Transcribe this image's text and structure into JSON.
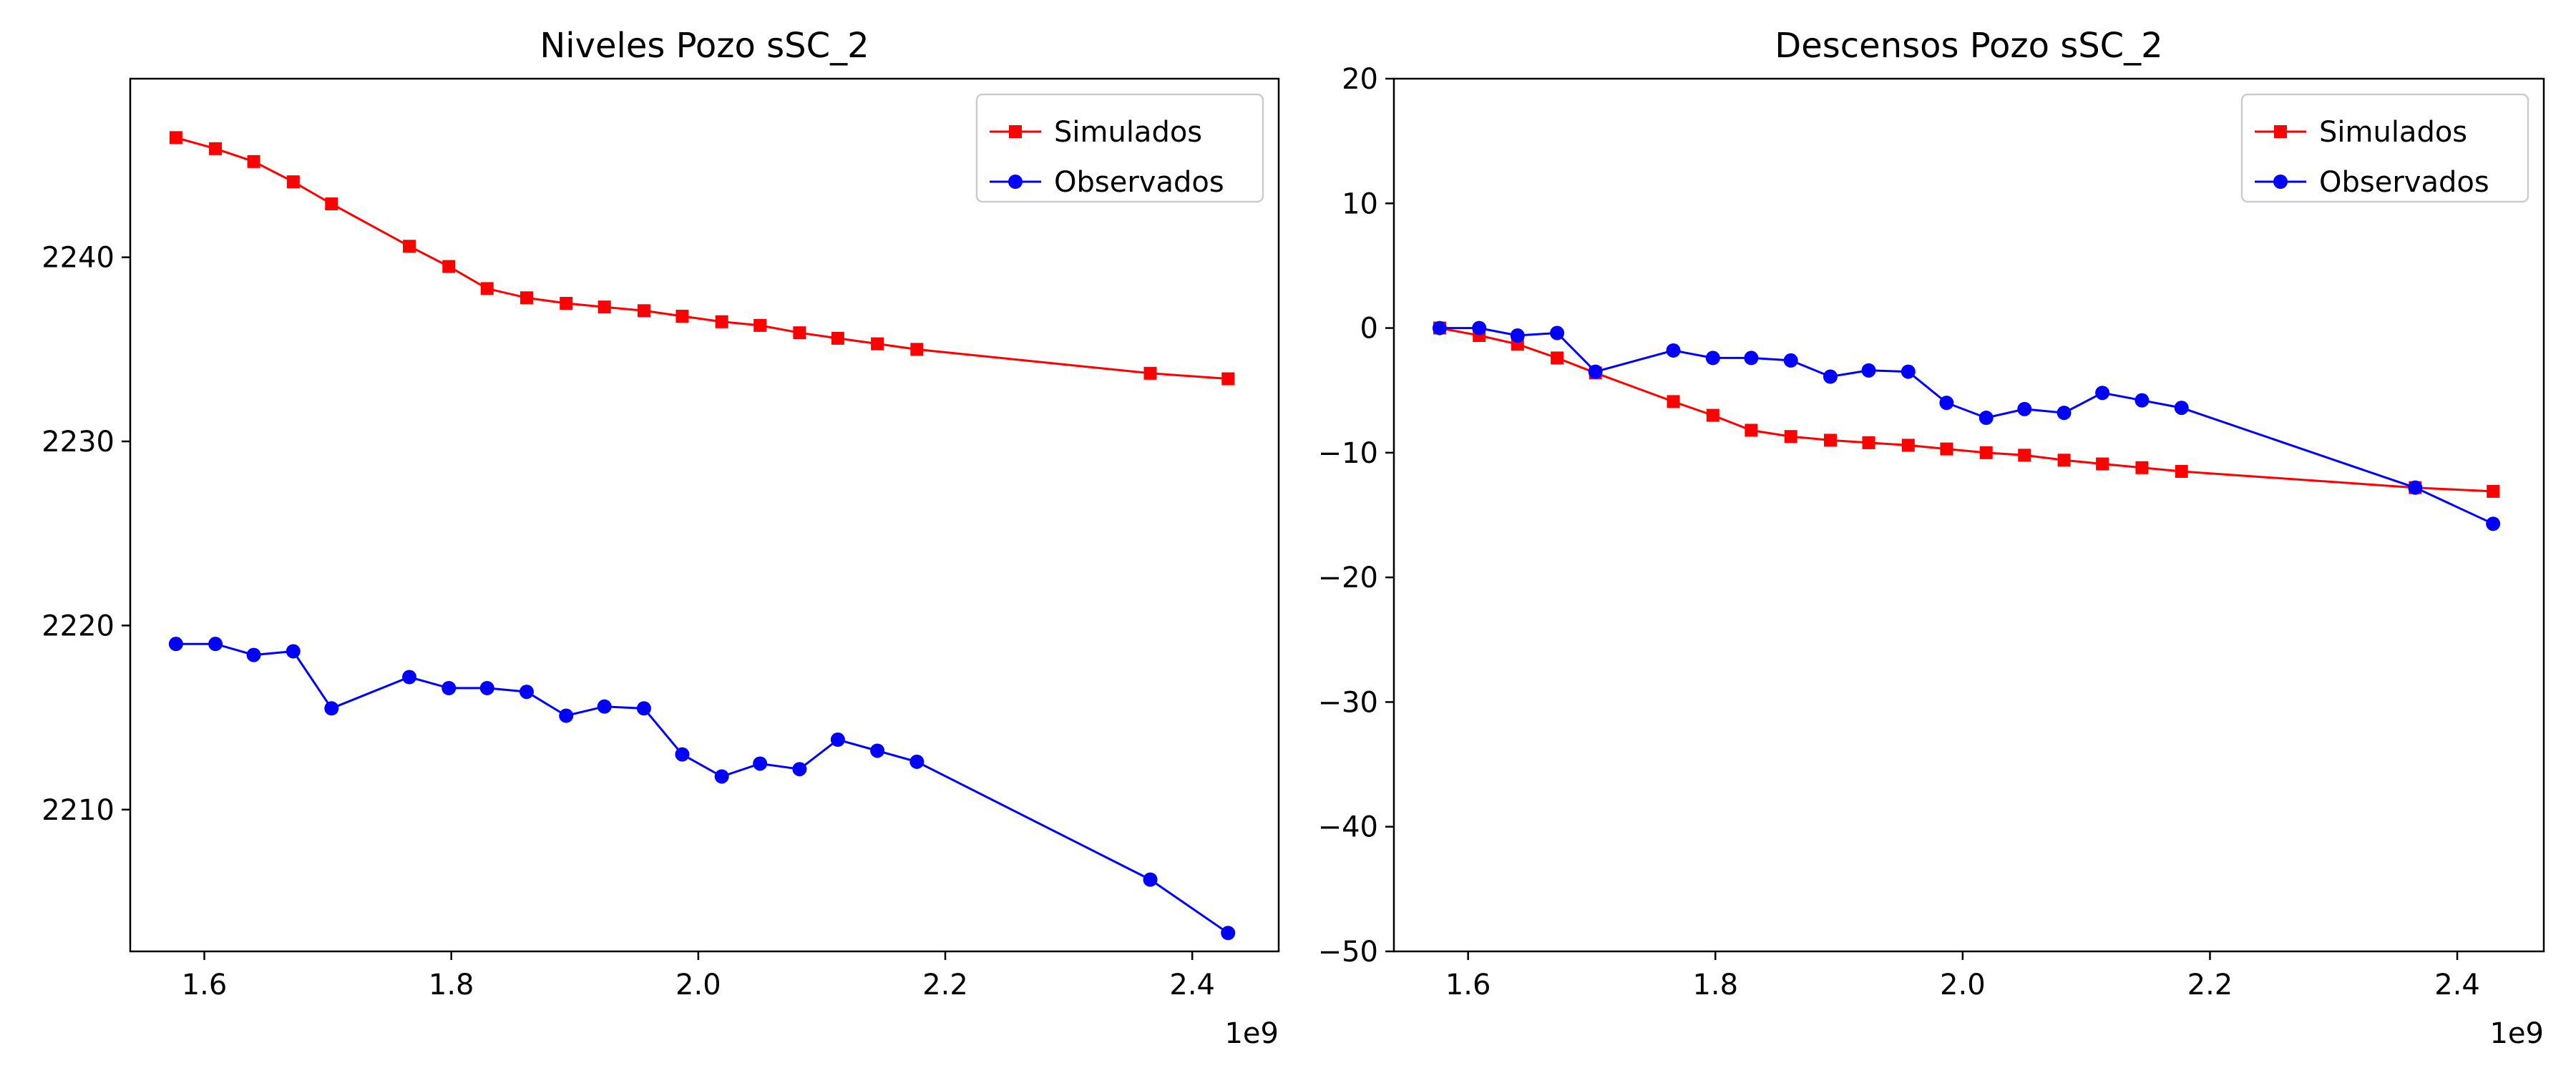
{
  "chart_data": [
    {
      "type": "line",
      "title": "Niveles Pozo sSC_2",
      "xlabel": "",
      "ylabel": "",
      "x_offset_label": "1e9",
      "xlim": [
        1.54,
        2.47
      ],
      "ylim": [
        2202.3,
        2249.7
      ],
      "xticks": [
        1.6,
        1.8,
        2.0,
        2.2,
        2.4
      ],
      "xtick_labels": [
        "1.6",
        "1.8",
        "2.0",
        "2.2",
        "2.4"
      ],
      "yticks": [
        2210,
        2220,
        2230,
        2240
      ],
      "ytick_labels": [
        "2210",
        "2220",
        "2230",
        "2240"
      ],
      "grid": false,
      "legend_position": "upper right",
      "series": [
        {
          "name": "Simulados",
          "color": "#ff0000",
          "marker": "square",
          "x": [
            1.577,
            1.609,
            1.64,
            1.672,
            1.703,
            1.766,
            1.798,
            1.829,
            1.861,
            1.893,
            1.924,
            1.956,
            1.987,
            2.019,
            2.05,
            2.082,
            2.113,
            2.145,
            2.177,
            2.366,
            2.429
          ],
          "y": [
            2246.5,
            2245.9,
            2245.2,
            2244.1,
            2242.9,
            2240.6,
            2239.5,
            2238.3,
            2237.8,
            2237.5,
            2237.3,
            2237.1,
            2236.8,
            2236.5,
            2236.3,
            2235.9,
            2235.6,
            2235.3,
            2235.0,
            2233.7,
            2233.4
          ]
        },
        {
          "name": "Observados",
          "color": "#0000ff",
          "marker": "circle",
          "x": [
            1.577,
            1.609,
            1.64,
            1.672,
            1.703,
            1.766,
            1.798,
            1.829,
            1.861,
            1.893,
            1.924,
            1.956,
            1.987,
            2.019,
            2.05,
            2.082,
            2.113,
            2.145,
            2.177,
            2.366,
            2.429
          ],
          "y": [
            2219.0,
            2219.0,
            2218.4,
            2218.6,
            2215.5,
            2217.2,
            2216.6,
            2216.6,
            2216.4,
            2215.1,
            2215.6,
            2215.5,
            2213.0,
            2211.8,
            2212.5,
            2212.2,
            2213.8,
            2213.2,
            2212.6,
            2206.2,
            2203.3
          ]
        }
      ]
    },
    {
      "type": "line",
      "title": "Descensos Pozo sSC_2",
      "xlabel": "",
      "ylabel": "",
      "x_offset_label": "1e9",
      "xlim": [
        1.54,
        2.47
      ],
      "ylim": [
        -50,
        20
      ],
      "xticks": [
        1.6,
        1.8,
        2.0,
        2.2,
        2.4
      ],
      "xtick_labels": [
        "1.6",
        "1.8",
        "2.0",
        "2.2",
        "2.4"
      ],
      "yticks": [
        -50,
        -40,
        -30,
        -20,
        -10,
        0,
        10,
        20
      ],
      "ytick_labels": [
        "−50",
        "−40",
        "−30",
        "−20",
        "−10",
        "0",
        "10",
        "20"
      ],
      "grid": false,
      "legend_position": "upper right",
      "series": [
        {
          "name": "Simulados",
          "color": "#ff0000",
          "marker": "square",
          "x": [
            1.577,
            1.609,
            1.64,
            1.672,
            1.703,
            1.766,
            1.798,
            1.829,
            1.861,
            1.893,
            1.924,
            1.956,
            1.987,
            2.019,
            2.05,
            2.082,
            2.113,
            2.145,
            2.177,
            2.366,
            2.429
          ],
          "y": [
            0.0,
            -0.6,
            -1.3,
            -2.4,
            -3.6,
            -5.9,
            -7.0,
            -8.2,
            -8.7,
            -9.0,
            -9.2,
            -9.4,
            -9.7,
            -10.0,
            -10.2,
            -10.6,
            -10.9,
            -11.2,
            -11.5,
            -12.8,
            -13.1
          ]
        },
        {
          "name": "Observados",
          "color": "#0000ff",
          "marker": "circle",
          "x": [
            1.577,
            1.609,
            1.64,
            1.672,
            1.703,
            1.766,
            1.798,
            1.829,
            1.861,
            1.893,
            1.924,
            1.956,
            1.987,
            2.019,
            2.05,
            2.082,
            2.113,
            2.145,
            2.177,
            2.366,
            2.429
          ],
          "y": [
            0.0,
            0.0,
            -0.6,
            -0.4,
            -3.5,
            -1.8,
            -2.4,
            -2.4,
            -2.6,
            -3.9,
            -3.4,
            -3.5,
            -6.0,
            -7.2,
            -6.5,
            -6.8,
            -5.2,
            -5.8,
            -6.4,
            -12.8,
            -15.7
          ]
        }
      ]
    }
  ]
}
